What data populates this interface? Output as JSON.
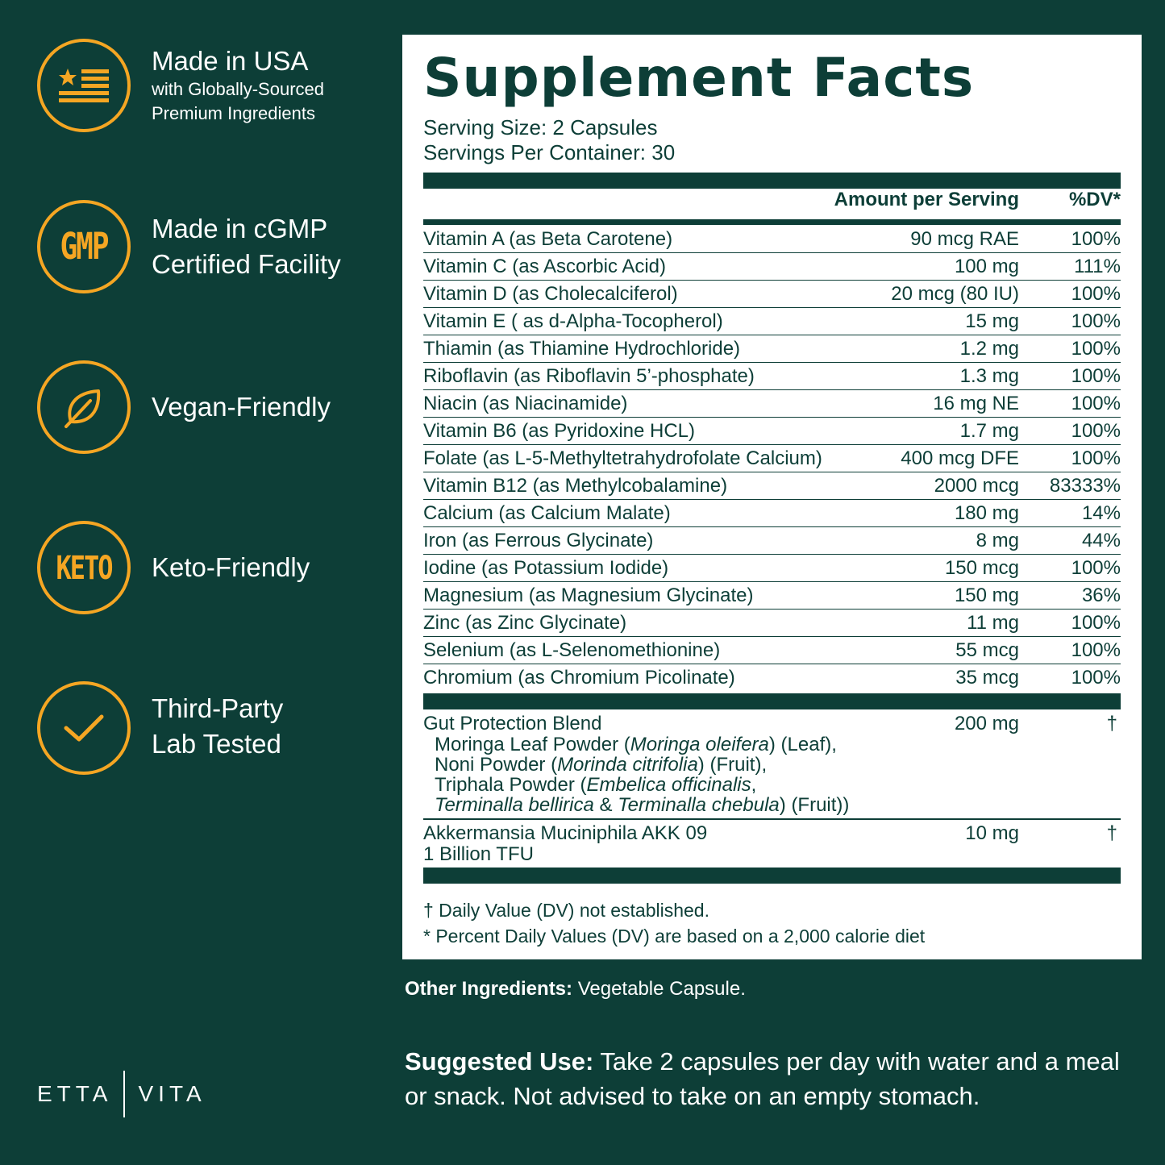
{
  "features": [
    {
      "badge": "flag",
      "title": "Made in USA",
      "sub1": "with Globally-Sourced",
      "sub2": "Premium Ingredients"
    },
    {
      "badge": "GMP",
      "line1": "Made in cGMP",
      "line2": "Certified Facility"
    },
    {
      "badge": "leaf",
      "line1": "Vegan-Friendly"
    },
    {
      "badge": "KETO",
      "line1": "Keto-Friendly"
    },
    {
      "badge": "check",
      "line1": "Third-Party",
      "line2": "Lab Tested"
    }
  ],
  "brand": {
    "left": "ETTA",
    "right": "VITA"
  },
  "facts": {
    "title": "Supplement Facts",
    "serving_size": "Serving Size: 2 Capsules",
    "servings_per": "Servings Per Container: 30",
    "col_amount": "Amount per Serving",
    "col_dv": "%DV*",
    "rows": [
      {
        "name": "Vitamin A (as Beta Carotene)",
        "amount": "90 mcg RAE",
        "dv": "100%"
      },
      {
        "name": "Vitamin C (as Ascorbic Acid)",
        "amount": "100 mg",
        "dv": "111%"
      },
      {
        "name": "Vitamin D (as Cholecalciferol)",
        "amount": "20 mcg (80 IU)",
        "dv": "100%"
      },
      {
        "name": "Vitamin E ( as d-Alpha-Tocopherol)",
        "amount": "15 mg",
        "dv": "100%"
      },
      {
        "name": "Thiamin (as Thiamine Hydrochloride)",
        "amount": "1.2 mg",
        "dv": "100%"
      },
      {
        "name": "Riboflavin (as Riboflavin 5’-phosphate)",
        "amount": "1.3 mg",
        "dv": "100%"
      },
      {
        "name": "Niacin (as Niacinamide)",
        "amount": "16 mg NE",
        "dv": "100%"
      },
      {
        "name": "Vitamin B6 (as Pyridoxine HCL)",
        "amount": "1.7 mg",
        "dv": "100%"
      },
      {
        "name": "Folate (as L-5-Methyltetrahydrofolate Calcium)",
        "amount": "400 mcg DFE",
        "dv": "100%"
      },
      {
        "name": "Vitamin B12 (as Methylcobalamine)",
        "amount": "2000 mcg",
        "dv": "83333%"
      },
      {
        "name": "Calcium (as Calcium Malate)",
        "amount": "180 mg",
        "dv": "14%"
      },
      {
        "name": "Iron (as Ferrous Glycinate)",
        "amount": "8 mg",
        "dv": "44%"
      },
      {
        "name": "Iodine (as Potassium Iodide)",
        "amount": "150 mcg",
        "dv": "100%"
      },
      {
        "name": "Magnesium (as Magnesium Glycinate)",
        "amount": "150 mg",
        "dv": "36%"
      },
      {
        "name": "Zinc (as Zinc Glycinate)",
        "amount": "11 mg",
        "dv": "100%"
      },
      {
        "name": "Selenium (as L-Selenomethionine)",
        "amount": "55 mcg",
        "dv": "100%"
      },
      {
        "name": "Chromium (as Chromium Picolinate)",
        "amount": "35 mcg",
        "dv": "100%"
      }
    ],
    "blend": {
      "name": "Gut Protection Blend",
      "amount": "200 mg",
      "dv": "†",
      "i1a": "Moringa Leaf Powder (",
      "i1b": "Moringa oleifera",
      "i1c": ") (Leaf),",
      "i2a": "Noni Powder (",
      "i2b": "Morinda citrifolia",
      "i2c": ") (Fruit),",
      "i3a": "Triphala Powder (",
      "i3b": "Embelica officinalis",
      "i3c": ",",
      "i4a": "Terminalla bellirica",
      "i4b": " & ",
      "i4c": "Terminalla chebula",
      "i4d": ") (Fruit))"
    },
    "akk": {
      "line1": "Akkermansia Muciniphila AKK 09",
      "line2": "1 Billion TFU",
      "amount": "10 mg",
      "dv": "†"
    },
    "footnote1": "† Daily Value (DV) not established.",
    "footnote2": "* Percent Daily Values (DV) are based on a 2,000 calorie diet"
  },
  "other": {
    "label": "Other Ingredients:",
    "text": " Vegetable Capsule."
  },
  "use": {
    "label": "Suggested Use:",
    "text": " Take 2 capsules per day with water and a meal or snack. Not advised to take on an empty stomach."
  },
  "colors": {
    "background": "#0d3e37",
    "accent": "#f5a623",
    "panel": "#ffffff"
  }
}
